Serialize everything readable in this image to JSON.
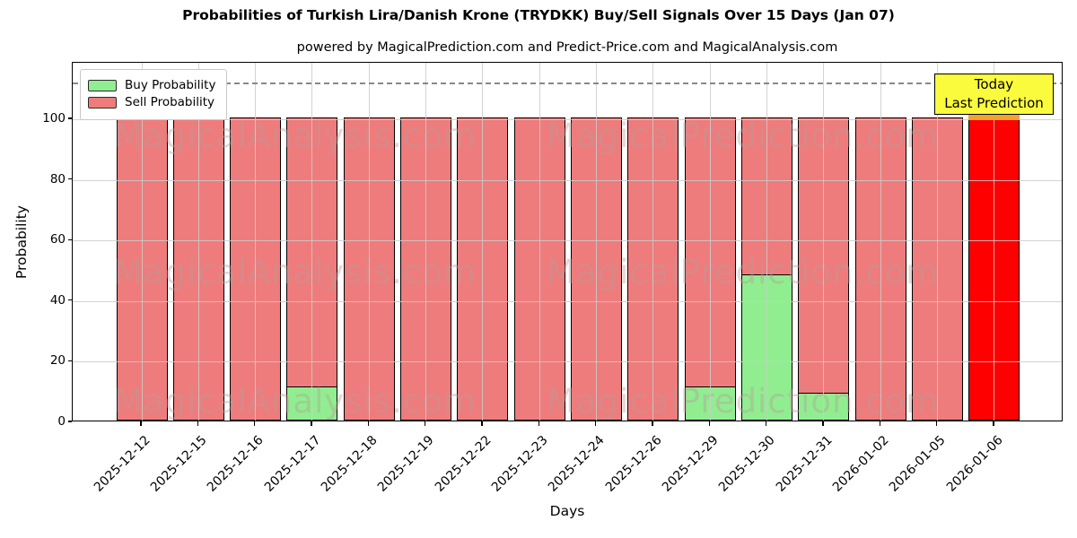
{
  "title": "Probabilities of Turkish Lira/Danish Krone (TRYDKK) Buy/Sell Signals Over 15 Days (Jan 07)",
  "subtitle": "powered by MagicalPrediction.com and Predict-Price.com and MagicalAnalysis.com",
  "axes": {
    "xlabel": "Days",
    "ylabel": "Probability",
    "yticks": [
      0,
      20,
      40,
      60,
      80,
      100
    ]
  },
  "legend": [
    {
      "label": "Buy Probability",
      "color": "#90ee90"
    },
    {
      "label": "Sell Probability",
      "color": "#ee7c7c"
    }
  ],
  "annotation_box": {
    "lines": [
      "Today",
      "Last Prediction"
    ],
    "bg_color": "#fbfb3d",
    "overlap_color": "#f0a42c"
  },
  "watermarks": {
    "left": "MagicalAnalysis.com",
    "right": "MagicalPrediction.com"
  },
  "chart_data": {
    "type": "bar",
    "stacked": true,
    "title": "Probabilities of Turkish Lira/Danish Krone (TRYDKK) Buy/Sell Signals Over 15 Days (Jan 07)",
    "xlabel": "Days",
    "ylabel": "Probability",
    "ylim": [
      0,
      118
    ],
    "grid": true,
    "legend_position": "upper left",
    "dashed_guide_y": 112,
    "categories": [
      "2025-12-12",
      "2025-12-15",
      "2025-12-16",
      "2025-12-17",
      "2025-12-18",
      "2025-12-19",
      "2025-12-22",
      "2025-12-23",
      "2025-12-24",
      "2025-12-26",
      "2025-12-29",
      "2025-12-30",
      "2025-12-31",
      "2026-01-02",
      "2026-01-05",
      "2026-01-06"
    ],
    "series": [
      {
        "name": "Buy Probability",
        "color": "#90ee90",
        "values": [
          0,
          0,
          0,
          11,
          0,
          0,
          0,
          0,
          0,
          0,
          11,
          48,
          9,
          0,
          0,
          0
        ]
      },
      {
        "name": "Sell Probability",
        "color": "#ee7c7c",
        "values": [
          100,
          100,
          100,
          89,
          100,
          100,
          100,
          100,
          100,
          100,
          89,
          52,
          91,
          100,
          100,
          100
        ]
      }
    ],
    "highlight": {
      "index": 15,
      "color": "#fe0000",
      "label": "Today Last Prediction"
    }
  }
}
